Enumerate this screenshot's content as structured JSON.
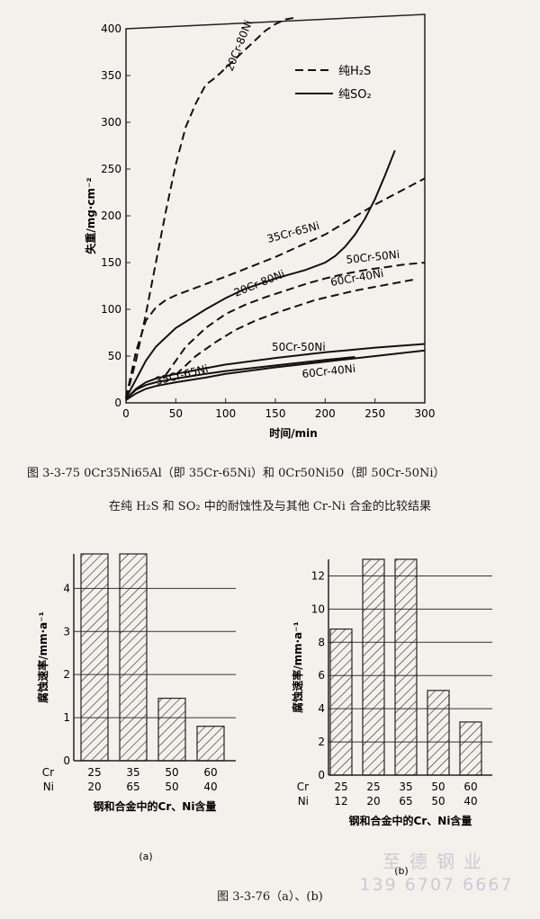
{
  "chart_data": [
    {
      "type": "line",
      "xlabel": "时间/min",
      "ylabel": "失重/mg·cm⁻²",
      "xlim": [
        0,
        300
      ],
      "ylim": [
        0,
        400
      ],
      "xticks": [
        0,
        50,
        100,
        150,
        200,
        250,
        300
      ],
      "yticks": [
        0,
        50,
        100,
        150,
        200,
        250,
        300,
        350,
        400
      ],
      "legend": [
        {
          "label": "纯H₂S",
          "style": "dashed"
        },
        {
          "label": "纯SO₂",
          "style": "solid"
        }
      ],
      "legend_position": "top-right",
      "series": [
        {
          "name": "20Cr-80Ni",
          "style": "dashed",
          "x": [
            0,
            10,
            20,
            30,
            40,
            50,
            60,
            70,
            80,
            90,
            100,
            110,
            120,
            130,
            140,
            150,
            160,
            170
          ],
          "y": [
            5,
            45,
            95,
            150,
            205,
            255,
            295,
            320,
            340,
            348,
            358,
            368,
            378,
            388,
            398,
            405,
            410,
            412
          ]
        },
        {
          "name": "35Cr-65Ni",
          "style": "dashed",
          "x": [
            0,
            10,
            20,
            30,
            40,
            50,
            60,
            80,
            100,
            150,
            200,
            250,
            300
          ],
          "y": [
            5,
            55,
            88,
            102,
            110,
            115,
            119,
            127,
            135,
            156,
            180,
            212,
            240
          ]
        },
        {
          "name": "50Cr-50Ni",
          "style": "dashed",
          "x": [
            40,
            60,
            80,
            100,
            120,
            140,
            160,
            180,
            200,
            220,
            240,
            260,
            280,
            300
          ],
          "y": [
            30,
            60,
            80,
            95,
            105,
            113,
            120,
            127,
            133,
            138,
            142,
            145,
            148,
            150
          ]
        },
        {
          "name": "60Cr-40Ni",
          "style": "dashed",
          "x": [
            50,
            70,
            90,
            110,
            130,
            150,
            170,
            190,
            210,
            230,
            250,
            270,
            290
          ],
          "y": [
            30,
            50,
            65,
            78,
            88,
            96,
            103,
            110,
            115,
            120,
            124,
            128,
            132
          ]
        },
        {
          "name": "20Cr-80Ni",
          "style": "solid",
          "x": [
            0,
            10,
            20,
            30,
            50,
            80,
            100,
            120,
            150,
            180,
            200,
            210,
            220,
            230,
            240,
            250,
            260,
            270
          ],
          "y": [
            5,
            25,
            45,
            60,
            80,
            100,
            112,
            122,
            133,
            142,
            150,
            157,
            167,
            180,
            197,
            218,
            243,
            270
          ]
        },
        {
          "name": "50Cr-50Ni",
          "style": "solid",
          "x": [
            0,
            10,
            20,
            30,
            50,
            80,
            100,
            150,
            200,
            250,
            300
          ],
          "y": [
            4,
            15,
            22,
            26,
            31,
            37,
            41,
            48,
            54,
            59,
            63
          ]
        },
        {
          "name": "35Cr-65Ni",
          "style": "solid",
          "x": [
            0,
            10,
            20,
            30,
            50,
            80,
            100,
            150,
            200,
            230
          ],
          "y": [
            4,
            14,
            19,
            22,
            26,
            31,
            34,
            40,
            46,
            49
          ]
        },
        {
          "name": "60Cr-40Ni",
          "style": "solid",
          "x": [
            0,
            10,
            20,
            30,
            50,
            80,
            100,
            150,
            200,
            250,
            300
          ],
          "y": [
            3,
            10,
            15,
            18,
            22,
            27,
            31,
            38,
            44,
            50,
            56
          ]
        }
      ]
    },
    {
      "type": "bar",
      "panel_label": "(a)",
      "ylabel": "腐蚀速率/mm·a⁻¹",
      "xlabel": "钢和合金中的Cr、Ni含量",
      "ylim": [
        0,
        4.8
      ],
      "yticks": [
        0,
        1,
        2,
        3,
        4
      ],
      "row_labels": [
        "Cr",
        "Ni"
      ],
      "categories": [
        [
          "25",
          "20"
        ],
        [
          "35",
          "65"
        ],
        [
          "50",
          "50"
        ],
        [
          "60",
          "40"
        ]
      ],
      "values": [
        4.8,
        4.8,
        1.45,
        0.8
      ],
      "hatch": "diagonal"
    },
    {
      "type": "bar",
      "panel_label": "(b)",
      "ylabel": "腐蚀速率/mm·a⁻¹",
      "xlabel": "钢和合金中的Cr、Ni含量",
      "ylim": [
        0,
        13
      ],
      "yticks": [
        0,
        2,
        4,
        6,
        8,
        10,
        12
      ],
      "row_labels": [
        "Cr",
        "Ni"
      ],
      "categories": [
        [
          "25",
          "12"
        ],
        [
          "25",
          "20"
        ],
        [
          "35",
          "65"
        ],
        [
          "50",
          "50"
        ],
        [
          "60",
          "40"
        ]
      ],
      "values": [
        8.8,
        13,
        13,
        5.1,
        3.2
      ],
      "hatch": "diagonal"
    }
  ],
  "captions": {
    "fig1_line1": "图 3-3-75  0Cr35Ni65Al（即 35Cr-65Ni）和 0Cr50Ni50（即 50Cr-50Ni）",
    "fig1_line2": "在纯 H₂S 和 SO₂ 中的耐蚀性及与其他 Cr-Ni 合金的比较结果",
    "fig2": "图 3-3-76（a）、(b)"
  },
  "watermark": {
    "line1": "至德钢业",
    "line2": "139 6707 6667"
  }
}
